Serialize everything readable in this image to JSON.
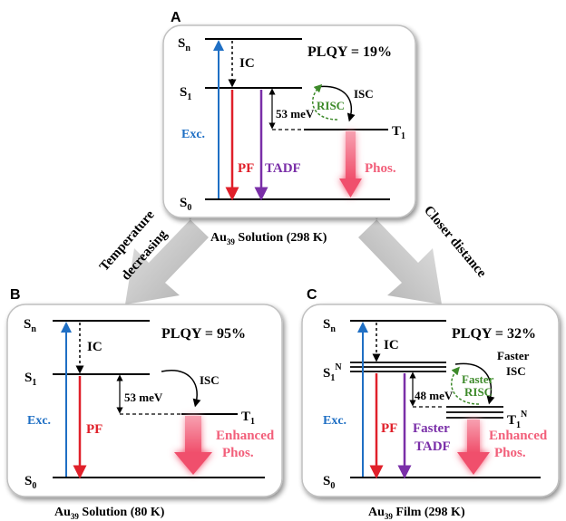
{
  "panels": {
    "a": {
      "letter": "A",
      "plqy": "PLQY = 19%",
      "caption_main": "Au",
      "caption_sub": "39",
      "caption_rest": " Solution (298 K)",
      "level_sn_main": "S",
      "level_sn_sub": "n",
      "level_s1_main": "S",
      "level_s1_sub": "1",
      "level_s0_main": "S",
      "level_s0_sub": "0",
      "level_t1_main": "T",
      "level_t1_sub": "1",
      "ic": "IC",
      "isc": "ISC",
      "risc": "RISC",
      "gap": "53 meV",
      "exc": "Exc.",
      "pf": "PF",
      "tadf": "TADF",
      "phos": "Phos."
    },
    "b": {
      "letter": "B",
      "plqy": "PLQY = 95%",
      "caption_main": "Au",
      "caption_sub": "39",
      "caption_rest": " Solution (80 K)",
      "level_sn_main": "S",
      "level_sn_sub": "n",
      "level_s1_main": "S",
      "level_s1_sub": "1",
      "level_s0_main": "S",
      "level_s0_sub": "0",
      "level_t1_main": "T",
      "level_t1_sub": "1",
      "ic": "IC",
      "isc": "ISC",
      "gap": "53 meV",
      "exc": "Exc.",
      "pf": "PF",
      "phos_line1": "Enhanced",
      "phos_line2": "Phos."
    },
    "c": {
      "letter": "C",
      "plqy": "PLQY = 32%",
      "caption_main": "Au",
      "caption_sub": "39",
      "caption_rest": " Film (298 K)",
      "level_sn_main": "S",
      "level_sn_sub": "n",
      "level_s1_main": "S",
      "level_s1_sub": "1",
      "level_s1_sup": "N",
      "level_s0_main": "S",
      "level_s0_sub": "0",
      "level_t1_main": "T",
      "level_t1_sub": "1",
      "level_t1_sup": "N",
      "ic": "IC",
      "isc_line1": "Faster",
      "isc_line2": "ISC",
      "risc_line1": "Faster",
      "risc_line2": "RISC",
      "gap": "48 meV",
      "exc": "Exc.",
      "pf": "PF",
      "tadf_line1": "Faster",
      "tadf_line2": "TADF",
      "phos_line1": "Enhanced",
      "phos_line2": "Phos."
    }
  },
  "arrows": {
    "left_line1": "Temperature",
    "left_line2": "decreasing",
    "right": "Closer distance"
  },
  "colors": {
    "excitation": "#1f6fc4",
    "pf": "#e0202a",
    "tadf": "#7a2fa8",
    "phos": "#f25f7a",
    "risc": "#3d8a2a",
    "label": "#000000"
  }
}
